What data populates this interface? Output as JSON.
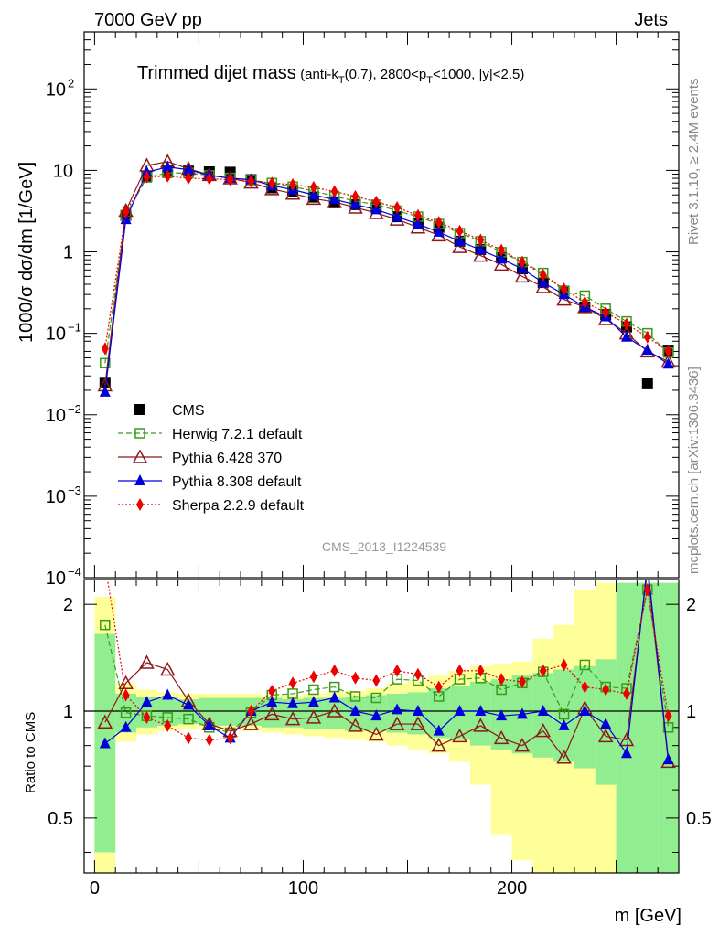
{
  "header": {
    "left_label": "7000 GeV pp",
    "right_label": "Jets"
  },
  "side_labels": {
    "rivet": "Rivet 3.1.10, ≥ 2.4M events",
    "mcplots": "mcplots.cern.ch [arXiv:1306.3436]"
  },
  "chart_data": {
    "type": "scatter",
    "title": "Trimmed dijet mass",
    "title_detail": "(anti-k_T(0.7), 2800<p_T<1000, |y|<2.5)",
    "watermark": "CMS_2013_I1224539",
    "xlabel": "m [GeV]",
    "ylabel": "1000/σ dσ/dm [1/GeV]",
    "ratio_ylabel": "Ratio to CMS",
    "xlim": [
      -5,
      280
    ],
    "ylim": [
      0.0001,
      500
    ],
    "yscale": "log",
    "ratio_ylim": [
      0.35,
      2.35
    ],
    "ratio_yscale": "log",
    "x_ticks": [
      "0",
      "100",
      "200"
    ],
    "y_ticks": [
      "10^-4",
      "10^-3",
      "10^-2",
      "10^-1",
      "1",
      "10",
      "10^2"
    ],
    "ratio_ticks": [
      "0.5",
      "1",
      "2"
    ],
    "legend_position": "lower-left",
    "colors": {
      "cms": "#000000",
      "herwig": "#3a9a1a",
      "pythia6": "#8b1a1a",
      "pythia8": "#0000dd",
      "sherpa": "#ee0000",
      "band_inner": "#90ee90",
      "band_outer": "#ffff99"
    },
    "x": [
      5,
      15,
      25,
      35,
      45,
      55,
      65,
      75,
      85,
      95,
      105,
      115,
      125,
      135,
      145,
      155,
      165,
      175,
      185,
      195,
      205,
      215,
      225,
      235,
      245,
      255,
      265,
      275
    ],
    "series": [
      {
        "name": "CMS",
        "marker": "square-filled",
        "color": "#000000",
        "x": [
          5,
          15,
          25,
          35,
          45,
          55,
          65,
          75,
          85,
          95,
          105,
          115,
          125,
          135,
          145,
          155,
          165,
          175,
          185,
          195,
          205,
          215,
          225,
          235,
          245,
          255,
          265,
          275
        ],
        "values": [
          0.025,
          2.8,
          8.5,
          9.8,
          9.8,
          9.6,
          9.5,
          7.7,
          6.1,
          5.5,
          4.7,
          4.0,
          3.8,
          3.5,
          2.7,
          2.2,
          2.0,
          1.35,
          1.07,
          0.85,
          0.62,
          0.42,
          0.33,
          0.21,
          0.17,
          0.12,
          0.024,
          0.062
        ]
      },
      {
        "name": "Herwig 7.2.1 default",
        "marker": "square-open",
        "line": "dashed",
        "color": "#3a9a1a",
        "x": [
          5,
          15,
          25,
          35,
          45,
          55,
          65,
          75,
          85,
          95,
          105,
          115,
          125,
          135,
          145,
          155,
          165,
          175,
          185,
          195,
          205,
          215,
          225,
          235,
          245,
          255,
          265,
          275
        ],
        "values": [
          0.043,
          2.8,
          8.2,
          9.3,
          9.3,
          8.7,
          8.1,
          7.6,
          7.0,
          6.3,
          5.6,
          4.8,
          4.2,
          3.8,
          3.2,
          2.7,
          2.2,
          1.7,
          1.35,
          0.99,
          0.75,
          0.55,
          0.33,
          0.29,
          0.2,
          0.14,
          0.1,
          0.058
        ]
      },
      {
        "name": "Pythia 6.428 370",
        "marker": "triangle-open",
        "line": "solid",
        "color": "#8b1a1a",
        "x": [
          5,
          15,
          25,
          35,
          45,
          55,
          65,
          75,
          85,
          95,
          105,
          115,
          125,
          135,
          145,
          155,
          165,
          175,
          185,
          195,
          205,
          215,
          225,
          235,
          245,
          255,
          265,
          275
        ],
        "values": [
          0.023,
          3.2,
          11.5,
          12.8,
          10.5,
          8.8,
          8.0,
          7.1,
          5.9,
          5.2,
          4.5,
          4.1,
          3.5,
          3.0,
          2.5,
          2.0,
          1.6,
          1.15,
          0.9,
          0.7,
          0.5,
          0.37,
          0.26,
          0.21,
          0.15,
          0.1,
          0.06,
          0.045
        ]
      },
      {
        "name": "Pythia 8.308 default",
        "marker": "triangle-filled",
        "line": "solid",
        "color": "#0000dd",
        "x": [
          5,
          15,
          25,
          35,
          45,
          55,
          65,
          75,
          85,
          95,
          105,
          115,
          125,
          135,
          145,
          155,
          165,
          175,
          185,
          195,
          205,
          215,
          225,
          235,
          245,
          255,
          265,
          275
        ],
        "values": [
          0.019,
          2.5,
          9.5,
          11.0,
          10.2,
          8.7,
          8.0,
          7.7,
          6.5,
          5.8,
          5.0,
          4.4,
          3.8,
          3.3,
          2.7,
          2.2,
          1.75,
          1.35,
          1.06,
          0.82,
          0.62,
          0.42,
          0.3,
          0.21,
          0.16,
          0.09,
          0.062,
          0.042
        ]
      },
      {
        "name": "Sherpa 2.2.9 default",
        "marker": "diamond-filled",
        "line": "dotted",
        "color": "#ee0000",
        "x": [
          5,
          15,
          25,
          35,
          45,
          55,
          65,
          75,
          85,
          95,
          105,
          115,
          125,
          135,
          145,
          155,
          165,
          175,
          185,
          195,
          205,
          215,
          225,
          235,
          245,
          255,
          265,
          275
        ],
        "values": [
          0.065,
          3.1,
          8.3,
          8.5,
          8.0,
          7.9,
          7.7,
          7.4,
          7.0,
          6.7,
          6.2,
          5.5,
          4.8,
          4.1,
          3.5,
          2.8,
          2.3,
          1.8,
          1.4,
          1.05,
          0.75,
          0.52,
          0.35,
          0.24,
          0.18,
          0.13,
          0.09,
          0.06
        ]
      }
    ],
    "ratio": {
      "x": [
        5,
        15,
        25,
        35,
        45,
        55,
        65,
        75,
        85,
        95,
        105,
        115,
        125,
        135,
        145,
        155,
        165,
        175,
        185,
        195,
        205,
        215,
        225,
        235,
        245,
        255,
        265,
        275
      ],
      "band_inner": [
        [
          0.4,
          1.65
        ],
        [
          0.87,
          1.12
        ],
        [
          0.9,
          1.1
        ],
        [
          0.91,
          1.09
        ],
        [
          0.92,
          1.08
        ],
        [
          0.91,
          1.09
        ],
        [
          0.91,
          1.09
        ],
        [
          0.91,
          1.09
        ],
        [
          0.9,
          1.09
        ],
        [
          0.9,
          1.08
        ],
        [
          0.89,
          1.09
        ],
        [
          0.89,
          1.09
        ],
        [
          0.88,
          1.1
        ],
        [
          0.88,
          1.11
        ],
        [
          0.87,
          1.12
        ],
        [
          0.86,
          1.13
        ],
        [
          0.84,
          1.16
        ],
        [
          0.83,
          1.18
        ],
        [
          0.8,
          1.21
        ],
        [
          0.78,
          1.23
        ],
        [
          0.76,
          1.26
        ],
        [
          0.74,
          1.28
        ],
        [
          0.72,
          1.31
        ],
        [
          0.69,
          1.34
        ],
        [
          0.62,
          1.4
        ],
        [
          0.35,
          2.3
        ],
        [
          0.35,
          2.3
        ],
        [
          0.35,
          2.3
        ]
      ],
      "band_outer": [
        [
          0.35,
          2.1
        ],
        [
          0.82,
          1.2
        ],
        [
          0.86,
          1.15
        ],
        [
          0.88,
          1.13
        ],
        [
          0.89,
          1.12
        ],
        [
          0.89,
          1.12
        ],
        [
          0.88,
          1.12
        ],
        [
          0.88,
          1.12
        ],
        [
          0.87,
          1.11
        ],
        [
          0.86,
          1.11
        ],
        [
          0.85,
          1.12
        ],
        [
          0.84,
          1.13
        ],
        [
          0.83,
          1.14
        ],
        [
          0.82,
          1.16
        ],
        [
          0.8,
          1.2
        ],
        [
          0.78,
          1.22
        ],
        [
          0.76,
          1.26
        ],
        [
          0.72,
          1.3
        ],
        [
          0.62,
          1.34
        ],
        [
          0.45,
          1.36
        ],
        [
          0.38,
          1.38
        ],
        [
          0.35,
          1.6
        ],
        [
          0.35,
          1.75
        ],
        [
          0.35,
          2.2
        ],
        [
          0.35,
          2.3
        ],
        [
          0.35,
          2.3
        ],
        [
          0.35,
          2.3
        ],
        [
          0.35,
          2.3
        ]
      ],
      "series": [
        {
          "name": "Herwig 7.2.1 default",
          "values": [
            1.75,
            0.99,
            0.97,
            0.96,
            0.95,
            0.9,
            0.87,
            0.99,
            1.11,
            1.12,
            1.15,
            1.17,
            1.1,
            1.09,
            1.23,
            1.22,
            1.1,
            1.23,
            1.24,
            1.15,
            1.2,
            1.29,
            0.98,
            1.35,
            1.17,
            1.16,
            2.2,
            0.9
          ]
        },
        {
          "name": "Pythia 6.428 370",
          "values": [
            0.93,
            1.2,
            1.37,
            1.31,
            1.07,
            0.92,
            0.88,
            0.92,
            0.98,
            0.95,
            0.96,
            1.0,
            0.91,
            0.86,
            0.92,
            0.92,
            0.8,
            0.85,
            0.91,
            0.84,
            0.8,
            0.88,
            0.74,
            1.02,
            0.85,
            0.83,
            2.5,
            0.72
          ]
        },
        {
          "name": "Pythia 8.308 default",
          "values": [
            0.81,
            0.9,
            1.06,
            1.11,
            1.04,
            0.91,
            0.84,
            1.0,
            1.06,
            1.05,
            1.06,
            1.09,
            1.0,
            0.97,
            1.01,
            1.0,
            0.88,
            1.0,
            1.0,
            0.97,
            0.98,
            1.0,
            0.91,
            1.0,
            0.92,
            0.76,
            2.6,
            0.73
          ]
        },
        {
          "name": "Sherpa 2.2.9 default",
          "values": [
            2.6,
            1.11,
            0.96,
            0.91,
            0.84,
            0.83,
            0.84,
            1.0,
            1.14,
            1.2,
            1.25,
            1.3,
            1.24,
            1.22,
            1.3,
            1.27,
            1.17,
            1.3,
            1.3,
            1.23,
            1.21,
            1.3,
            1.35,
            1.17,
            1.15,
            1.12,
            2.2,
            0.97
          ]
        }
      ]
    }
  }
}
